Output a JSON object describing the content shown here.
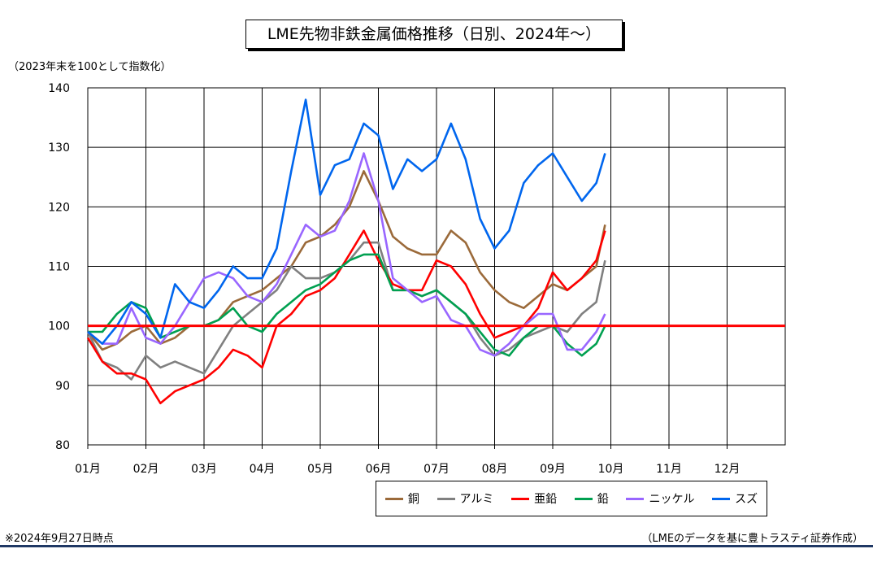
{
  "title": "LME先物非鉄金属価格推移（日別、2024年～）",
  "subtitle": "（2023年末を100として指数化）",
  "note_left": "※2024年9月27日時点",
  "note_right": "（LMEのデータを基に豊トラスティ証券作成）",
  "chart_data": {
    "type": "line",
    "title": "LME先物非鉄金属価格推移（日別、2024年～）",
    "ylabel": "（2023年末を100として指数化）",
    "ylim": [
      80,
      140
    ],
    "yticks": [
      80,
      90,
      100,
      110,
      120,
      130,
      140
    ],
    "xlim": [
      1,
      13
    ],
    "xticks": [
      "01月",
      "02月",
      "03月",
      "04月",
      "05月",
      "06月",
      "07月",
      "08月",
      "09月",
      "10月",
      "11月",
      "12月"
    ],
    "grid": true,
    "legend_position": "bottom",
    "reference_line": {
      "y": 100,
      "color": "#ff0000"
    },
    "x_point_months": [
      1.0,
      1.25,
      1.5,
      1.75,
      2.0,
      2.25,
      2.5,
      2.75,
      3.0,
      3.25,
      3.5,
      3.75,
      4.0,
      4.25,
      4.5,
      4.75,
      5.0,
      5.25,
      5.5,
      5.75,
      6.0,
      6.25,
      6.5,
      6.75,
      7.0,
      7.25,
      7.5,
      7.75,
      8.0,
      8.25,
      8.5,
      8.75,
      9.0,
      9.25,
      9.5,
      9.75,
      9.9
    ],
    "series": [
      {
        "name": "銅",
        "color": "#9b6a3a",
        "values": [
          99,
          96,
          97,
          99,
          100,
          97,
          98,
          100,
          100,
          101,
          104,
          105,
          106,
          108,
          110,
          114,
          115,
          117,
          120,
          126,
          121,
          115,
          113,
          112,
          112,
          116,
          114,
          109,
          106,
          104,
          103,
          105,
          107,
          106,
          108,
          110,
          117
        ]
      },
      {
        "name": "アルミ",
        "color": "#808080",
        "values": [
          99,
          94,
          93,
          91,
          95,
          93,
          94,
          93,
          92,
          96,
          100,
          102,
          104,
          106,
          110,
          108,
          108,
          109,
          111,
          114,
          114,
          106,
          106,
          105,
          106,
          104,
          102,
          98,
          95,
          96,
          98,
          99,
          100,
          99,
          102,
          104,
          111
        ]
      },
      {
        "name": "亜鉛",
        "color": "#ff0000",
        "values": [
          98,
          94,
          92,
          92,
          91,
          87,
          89,
          90,
          91,
          93,
          96,
          95,
          93,
          100,
          102,
          105,
          106,
          108,
          112,
          116,
          111,
          107,
          106,
          106,
          111,
          110,
          107,
          102,
          98,
          99,
          100,
          103,
          109,
          106,
          108,
          111,
          116
        ]
      },
      {
        "name": "鉛",
        "color": "#00a050",
        "values": [
          99,
          99,
          102,
          104,
          103,
          98,
          99,
          100,
          100,
          101,
          103,
          100,
          99,
          102,
          104,
          106,
          107,
          109,
          111,
          112,
          112,
          106,
          106,
          105,
          106,
          104,
          102,
          99,
          96,
          95,
          98,
          100,
          100,
          97,
          95,
          97,
          100
        ]
      },
      {
        "name": "ニッケル",
        "color": "#9966ff",
        "values": [
          99,
          97,
          97,
          103,
          98,
          97,
          100,
          104,
          108,
          109,
          108,
          105,
          104,
          107,
          112,
          117,
          115,
          116,
          121,
          129,
          121,
          108,
          106,
          104,
          105,
          101,
          100,
          96,
          95,
          97,
          100,
          102,
          102,
          96,
          96,
          99,
          102
        ]
      },
      {
        "name": "スズ",
        "color": "#0066ee",
        "values": [
          99,
          97,
          100,
          104,
          102,
          98,
          107,
          104,
          103,
          106,
          110,
          108,
          108,
          113,
          126,
          138,
          122,
          127,
          128,
          134,
          132,
          123,
          128,
          126,
          128,
          134,
          128,
          118,
          113,
          116,
          124,
          127,
          129,
          125,
          121,
          124,
          129
        ]
      }
    ]
  }
}
